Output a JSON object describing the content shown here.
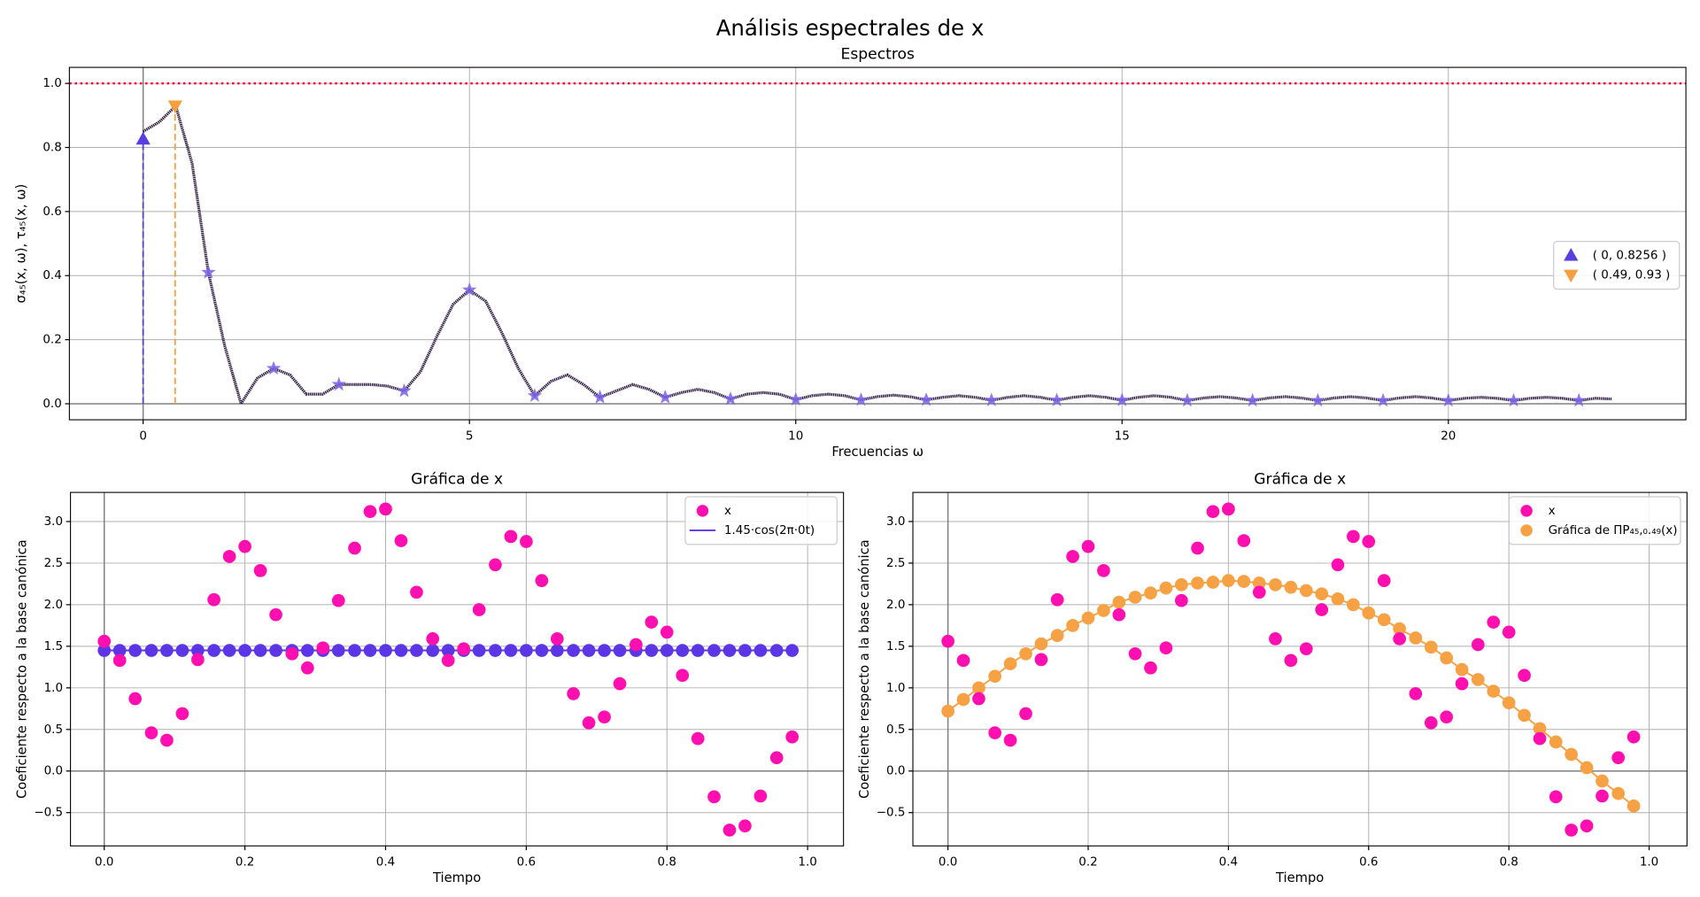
{
  "title": "Análisis espectrales de x",
  "chart_data": [
    {
      "type": "line",
      "title": "Espectros",
      "xlabel": "Frecuencias ω",
      "ylabel": "σ₄₅(x, ω), τ₄₅(x, ω)",
      "xlim": [
        -1.13,
        23.64
      ],
      "ylim": [
        -0.05,
        1.05
      ],
      "xticks": [
        0,
        5,
        10,
        15,
        20
      ],
      "yticks": [
        {
          "value": 0,
          "label": "0.0"
        },
        {
          "value": 0.2,
          "label": "0.2"
        },
        {
          "value": 0.4,
          "label": "0.4"
        },
        {
          "value": 0.6,
          "label": "0.6"
        },
        {
          "value": 0.8,
          "label": "0.8"
        },
        {
          "value": 1,
          "label": "1.0"
        }
      ],
      "grid": true,
      "legend": "center right",
      "x": [
        0,
        0.25,
        0.5,
        0.75,
        1,
        1.25,
        1.5,
        1.75,
        2,
        2.25,
        2.5,
        2.75,
        3,
        3.25,
        3.5,
        3.75,
        4,
        4.25,
        4.5,
        4.75,
        5,
        5.25,
        5.5,
        5.75,
        6,
        6.25,
        6.5,
        6.75,
        7,
        7.25,
        7.5,
        7.75,
        8,
        8.25,
        8.5,
        8.75,
        9,
        9.25,
        9.5,
        9.75,
        10,
        10.25,
        10.5,
        10.75,
        11,
        11.25,
        11.5,
        11.75,
        12,
        12.25,
        12.5,
        12.75,
        13,
        13.25,
        13.5,
        13.75,
        14,
        14.25,
        14.5,
        14.75,
        15,
        15.25,
        15.5,
        15.75,
        16,
        16.25,
        16.5,
        16.75,
        17,
        17.25,
        17.5,
        17.75,
        18,
        18.25,
        18.5,
        18.75,
        19,
        19.25,
        19.5,
        19.75,
        20,
        20.25,
        20.5,
        20.75,
        21,
        21.25,
        21.5,
        21.75,
        22,
        22.25,
        22.5
      ],
      "series": [
        {
          "color": "#2e1a40",
          "values": [
            0.85,
            0.88,
            0.93,
            0.75,
            0.41,
            0.18,
            0.0,
            0.08,
            0.11,
            0.09,
            0.03,
            0.03,
            0.06,
            0.06,
            0.06,
            0.055,
            0.04,
            0.1,
            0.21,
            0.31,
            0.355,
            0.32,
            0.22,
            0.11,
            0.025,
            0.07,
            0.09,
            0.06,
            0.02,
            0.04,
            0.06,
            0.045,
            0.02,
            0.035,
            0.045,
            0.035,
            0.015,
            0.03,
            0.035,
            0.03,
            0.013,
            0.025,
            0.03,
            0.025,
            0.012,
            0.022,
            0.027,
            0.022,
            0.012,
            0.02,
            0.025,
            0.02,
            0.011,
            0.02,
            0.025,
            0.02,
            0.011,
            0.02,
            0.025,
            0.02,
            0.011,
            0.02,
            0.025,
            0.02,
            0.01,
            0.018,
            0.022,
            0.018,
            0.01,
            0.018,
            0.022,
            0.018,
            0.01,
            0.018,
            0.022,
            0.018,
            0.01,
            0.018,
            0.022,
            0.018,
            0.01,
            0.017,
            0.02,
            0.017,
            0.01,
            0.017,
            0.02,
            0.017,
            0.01,
            0.017,
            0.015
          ]
        }
      ],
      "stars": {
        "color": "#7b62e6",
        "x": [
          1,
          2,
          3,
          4,
          5,
          6,
          7,
          8,
          9,
          10,
          11,
          12,
          13,
          14,
          15,
          16,
          17,
          18,
          19,
          20,
          21,
          22
        ],
        "values": [
          0.41,
          0.11,
          0.06,
          0.04,
          0.355,
          0.025,
          0.02,
          0.02,
          0.015,
          0.013,
          0.012,
          0.012,
          0.011,
          0.011,
          0.011,
          0.01,
          0.01,
          0.01,
          0.01,
          0.01,
          0.01,
          0.01
        ]
      },
      "markers": [
        {
          "name": "( 0, 0.8256 )",
          "shape": "triangle-up",
          "color": "#5a3ee0",
          "x": 0,
          "value": 0.8256
        },
        {
          "name": "( 0.49, 0.93 )",
          "shape": "triangle-down",
          "color": "#f5a040",
          "x": 0.49,
          "value": 0.93
        }
      ],
      "hline": {
        "value": 1,
        "color": "#ff0033"
      }
    },
    {
      "type": "scatter",
      "title": "Gráfica de x",
      "xlabel": "Tiempo",
      "ylabel": "Coeficiente respecto a la base canónica",
      "xlim": [
        -0.048,
        1.051
      ],
      "ylim": [
        -0.9,
        3.35
      ],
      "xticks": [
        {
          "value": 0,
          "label": "0.0"
        },
        {
          "value": 0.2,
          "label": "0.2"
        },
        {
          "value": 0.4,
          "label": "0.4"
        },
        {
          "value": 0.6,
          "label": "0.6"
        },
        {
          "value": 0.8,
          "label": "0.8"
        },
        {
          "value": 1,
          "label": "1.0"
        }
      ],
      "yticks": [
        {
          "value": -0.5,
          "label": "−0.5"
        },
        {
          "value": 0,
          "label": "0.0"
        },
        {
          "value": 0.5,
          "label": "0.5"
        },
        {
          "value": 1,
          "label": "1.0"
        },
        {
          "value": 1.5,
          "label": "1.5"
        },
        {
          "value": 2,
          "label": "2.0"
        },
        {
          "value": 2.5,
          "label": "2.5"
        },
        {
          "value": 3,
          "label": "3.0"
        }
      ],
      "grid": true,
      "legend": "upper right",
      "x": [
        0,
        0.022,
        0.044,
        0.067,
        0.089,
        0.111,
        0.133,
        0.156,
        0.178,
        0.2,
        0.222,
        0.244,
        0.267,
        0.289,
        0.311,
        0.333,
        0.356,
        0.378,
        0.4,
        0.422,
        0.444,
        0.467,
        0.489,
        0.511,
        0.533,
        0.556,
        0.578,
        0.6,
        0.622,
        0.644,
        0.667,
        0.689,
        0.711,
        0.733,
        0.756,
        0.778,
        0.8,
        0.822,
        0.844,
        0.867,
        0.889,
        0.911,
        0.933,
        0.956,
        0.978
      ],
      "series": [
        {
          "name": "x",
          "color": "#ff0fb0",
          "legend_symbol": "marker",
          "line": false,
          "values": [
            1.56,
            1.33,
            0.87,
            0.46,
            0.37,
            0.69,
            1.34,
            2.06,
            2.58,
            2.7,
            2.41,
            1.88,
            1.41,
            1.24,
            1.48,
            2.05,
            2.68,
            3.12,
            3.15,
            2.77,
            2.15,
            1.59,
            1.33,
            1.47,
            1.94,
            2.48,
            2.82,
            2.76,
            2.29,
            1.59,
            0.93,
            0.58,
            0.65,
            1.05,
            1.52,
            1.79,
            1.67,
            1.15,
            0.39,
            -0.31,
            -0.71,
            -0.66,
            -0.3,
            0.16,
            0.41
          ]
        },
        {
          "name": "1.45·cos(2π·0t)",
          "color": "#5b35e6",
          "legend_symbol": "line",
          "line": true,
          "values": [
            1.45,
            1.45,
            1.45,
            1.45,
            1.45,
            1.45,
            1.45,
            1.45,
            1.45,
            1.45,
            1.45,
            1.45,
            1.45,
            1.45,
            1.45,
            1.45,
            1.45,
            1.45,
            1.45,
            1.45,
            1.45,
            1.45,
            1.45,
            1.45,
            1.45,
            1.45,
            1.45,
            1.45,
            1.45,
            1.45,
            1.45,
            1.45,
            1.45,
            1.45,
            1.45,
            1.45,
            1.45,
            1.45,
            1.45,
            1.45,
            1.45,
            1.45,
            1.45,
            1.45,
            1.45
          ]
        }
      ]
    },
    {
      "type": "scatter",
      "title": "Gráfica de x",
      "xlabel": "Tiempo",
      "ylabel": "Coeficiente respecto a la base canónica",
      "xlim": [
        -0.05,
        1.054
      ],
      "ylim": [
        -0.9,
        3.35
      ],
      "xticks": [
        {
          "value": 0,
          "label": "0.0"
        },
        {
          "value": 0.2,
          "label": "0.2"
        },
        {
          "value": 0.4,
          "label": "0.4"
        },
        {
          "value": 0.6,
          "label": "0.6"
        },
        {
          "value": 0.8,
          "label": "0.8"
        },
        {
          "value": 1,
          "label": "1.0"
        }
      ],
      "yticks": [
        {
          "value": -0.5,
          "label": "−0.5"
        },
        {
          "value": 0,
          "label": "0.0"
        },
        {
          "value": 0.5,
          "label": "0.5"
        },
        {
          "value": 1,
          "label": "1.0"
        },
        {
          "value": 1.5,
          "label": "1.5"
        },
        {
          "value": 2,
          "label": "2.0"
        },
        {
          "value": 2.5,
          "label": "2.5"
        },
        {
          "value": 3,
          "label": "3.0"
        }
      ],
      "grid": true,
      "legend": "upper right",
      "x": [
        0,
        0.022,
        0.044,
        0.067,
        0.089,
        0.111,
        0.133,
        0.156,
        0.178,
        0.2,
        0.222,
        0.244,
        0.267,
        0.289,
        0.311,
        0.333,
        0.356,
        0.378,
        0.4,
        0.422,
        0.444,
        0.467,
        0.489,
        0.511,
        0.533,
        0.556,
        0.578,
        0.6,
        0.622,
        0.644,
        0.667,
        0.689,
        0.711,
        0.733,
        0.756,
        0.778,
        0.8,
        0.822,
        0.844,
        0.867,
        0.889,
        0.911,
        0.933,
        0.956,
        0.978
      ],
      "series": [
        {
          "name": "x",
          "color": "#ff0fb0",
          "legend_symbol": "marker",
          "line": false,
          "values": [
            1.56,
            1.33,
            0.87,
            0.46,
            0.37,
            0.69,
            1.34,
            2.06,
            2.58,
            2.7,
            2.41,
            1.88,
            1.41,
            1.24,
            1.48,
            2.05,
            2.68,
            3.12,
            3.15,
            2.77,
            2.15,
            1.59,
            1.33,
            1.47,
            1.94,
            2.48,
            2.82,
            2.76,
            2.29,
            1.59,
            0.93,
            0.58,
            0.65,
            1.05,
            1.52,
            1.79,
            1.67,
            1.15,
            0.39,
            -0.31,
            -0.71,
            -0.66,
            -0.3,
            0.16,
            0.41
          ]
        },
        {
          "name": "Gráfica de ΠP₄₅,₀.₄₉(x)",
          "color": "#f7a145",
          "legend_symbol": "marker",
          "line": true,
          "values": [
            0.72,
            0.86,
            1.0,
            1.14,
            1.29,
            1.41,
            1.53,
            1.63,
            1.75,
            1.84,
            1.93,
            2.03,
            2.09,
            2.14,
            2.2,
            2.24,
            2.26,
            2.27,
            2.29,
            2.28,
            2.26,
            2.24,
            2.21,
            2.17,
            2.13,
            2.07,
            2.0,
            1.9,
            1.82,
            1.71,
            1.6,
            1.49,
            1.36,
            1.22,
            1.1,
            0.96,
            0.82,
            0.67,
            0.51,
            0.35,
            0.2,
            0.04,
            -0.12,
            -0.27,
            -0.42
          ]
        }
      ]
    }
  ]
}
